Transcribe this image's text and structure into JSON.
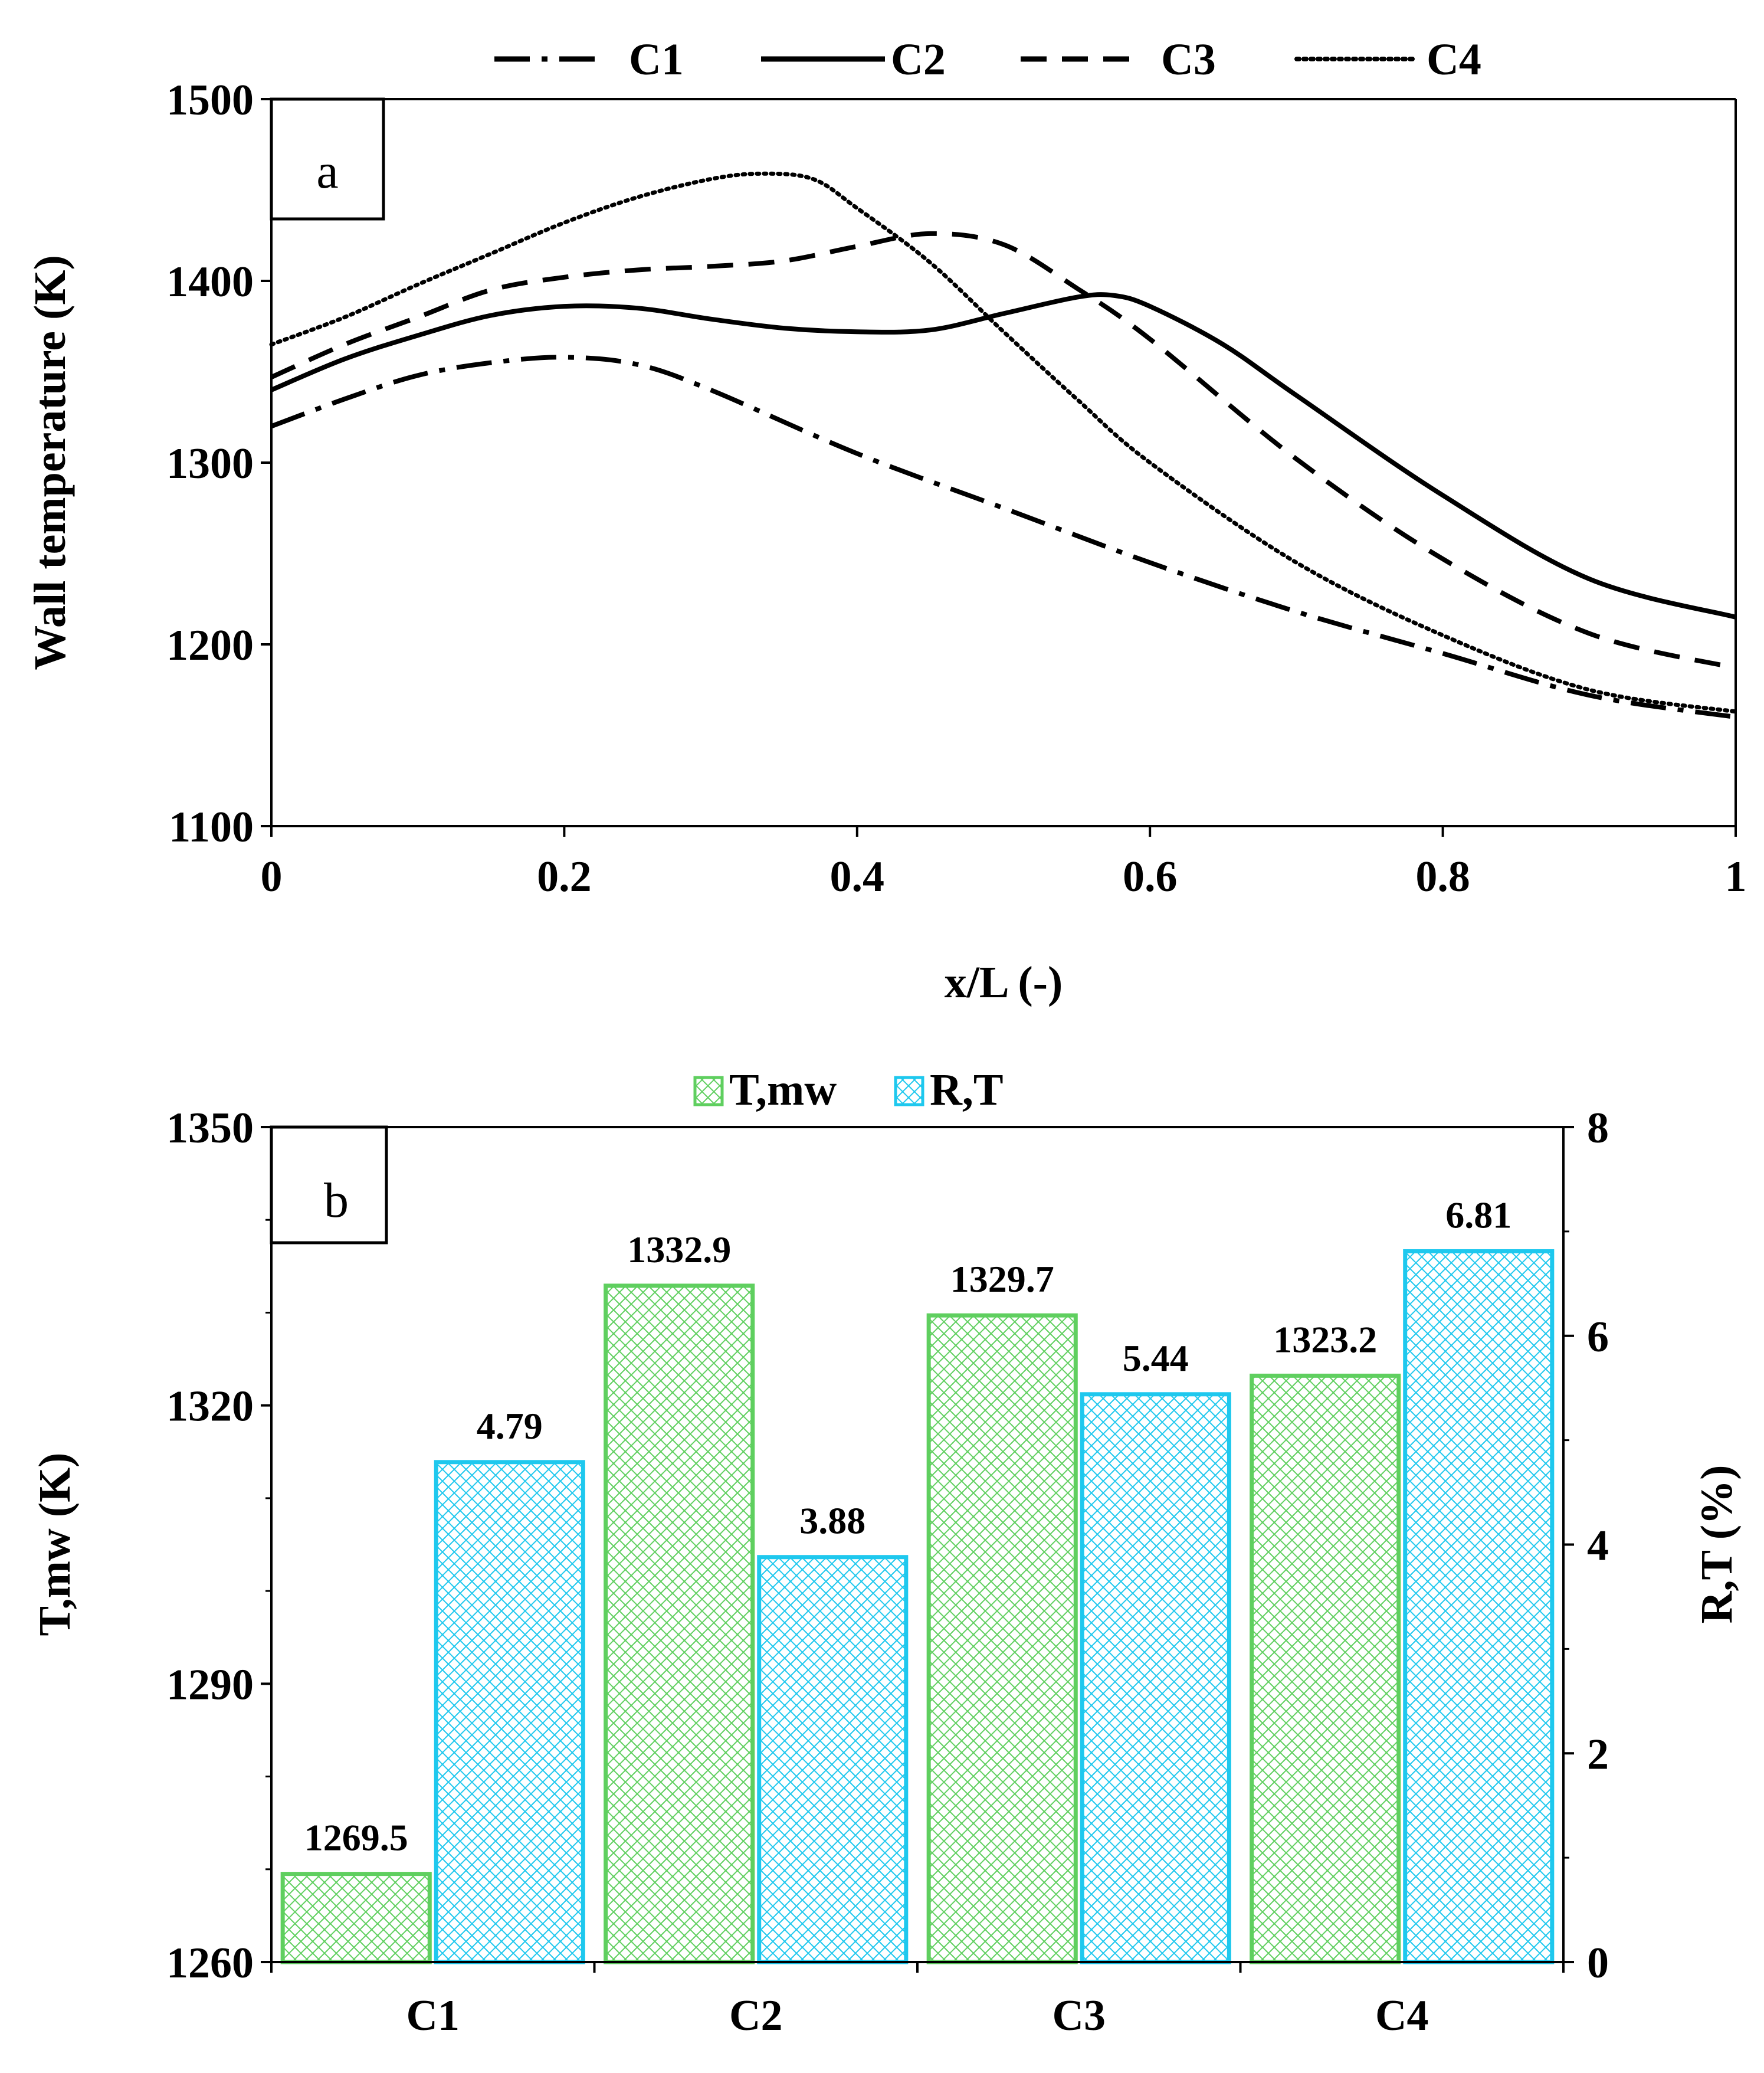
{
  "chart_data": [
    {
      "type": "line",
      "panel_label": "a",
      "xlabel": "x/L (-)",
      "ylabel": "Wall temperature (K)",
      "xlim": [
        0,
        1
      ],
      "ylim": [
        1100,
        1500
      ],
      "x_ticks": [
        "0",
        "0.2",
        "0.4",
        "0.6",
        "0.8",
        "1"
      ],
      "y_ticks": [
        "1100",
        "1200",
        "1300",
        "1400",
        "1500"
      ],
      "legend_position": "top",
      "series": [
        {
          "name": "C1",
          "style": "dash-dot",
          "x": [
            0,
            0.05,
            0.1,
            0.15,
            0.2,
            0.25,
            0.3,
            0.4,
            0.5,
            0.6,
            0.7,
            0.8,
            0.9,
            1.0
          ],
          "y": [
            1320,
            1335,
            1348,
            1355,
            1358,
            1354,
            1340,
            1305,
            1275,
            1245,
            1218,
            1195,
            1172,
            1160
          ]
        },
        {
          "name": "C2",
          "style": "solid",
          "x": [
            0,
            0.05,
            0.1,
            0.15,
            0.2,
            0.25,
            0.3,
            0.35,
            0.4,
            0.45,
            0.5,
            0.55,
            0.575,
            0.6,
            0.65,
            0.7,
            0.8,
            0.9,
            1.0
          ],
          "y": [
            1340,
            1357,
            1370,
            1381,
            1386,
            1385,
            1379,
            1374,
            1372,
            1373,
            1382,
            1391,
            1392,
            1386,
            1365,
            1337,
            1282,
            1236,
            1215
          ]
        },
        {
          "name": "C3",
          "style": "dash",
          "x": [
            0,
            0.05,
            0.1,
            0.15,
            0.2,
            0.25,
            0.3,
            0.35,
            0.4,
            0.45,
            0.5,
            0.55,
            0.6,
            0.7,
            0.8,
            0.9,
            1.0
          ],
          "y": [
            1347,
            1365,
            1380,
            1395,
            1402,
            1406,
            1408,
            1411,
            1419,
            1426,
            1420,
            1396,
            1368,
            1302,
            1247,
            1206,
            1187
          ]
        },
        {
          "name": "C4",
          "style": "dotted",
          "x": [
            0,
            0.05,
            0.1,
            0.15,
            0.2,
            0.25,
            0.3,
            0.335,
            0.37,
            0.4,
            0.45,
            0.5,
            0.55,
            0.6,
            0.7,
            0.8,
            0.9,
            1.0
          ],
          "y": [
            1365,
            1380,
            1398,
            1415,
            1432,
            1446,
            1456,
            1459,
            1456,
            1440,
            1410,
            1372,
            1335,
            1300,
            1245,
            1205,
            1175,
            1163
          ]
        }
      ]
    },
    {
      "type": "bar",
      "panel_label": "b",
      "categories": [
        "C1",
        "C2",
        "C3",
        "C4"
      ],
      "ylabel": "T,mw (K)",
      "ylim": [
        1260,
        1350
      ],
      "y_ticks": [
        "1260",
        "1290",
        "1320",
        "1350"
      ],
      "y2label": "R,T (%)",
      "y2lim": [
        0,
        8
      ],
      "y2_ticks": [
        "0",
        "2",
        "4",
        "6",
        "8"
      ],
      "legend_position": "top",
      "series": [
        {
          "name": "T,mw",
          "axis": "left",
          "color": "#5fcf5f",
          "values": [
            1269.5,
            1332.9,
            1329.7,
            1323.2
          ],
          "labels": [
            "1269.5",
            "1332.9",
            "1329.7",
            "1323.2"
          ]
        },
        {
          "name": "R,T",
          "axis": "right",
          "color": "#1ec8ee",
          "values": [
            4.79,
            3.88,
            5.44,
            6.81
          ],
          "labels": [
            "4.79",
            "3.88",
            "5.44",
            "6.81"
          ]
        }
      ]
    }
  ]
}
